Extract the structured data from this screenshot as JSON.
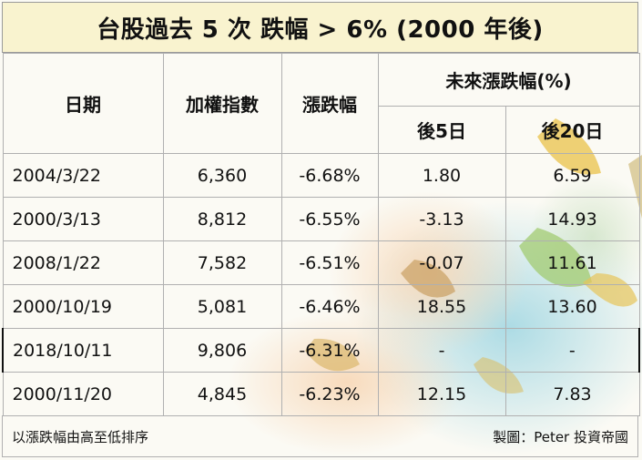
{
  "title": "台股過去 5 次 跌幅 > 6% (2000 年後)",
  "headers": {
    "date": "日期",
    "index": "加權指數",
    "change": "漲跌幅",
    "future": "未來漲跌幅(%)",
    "after5": "後5日",
    "after20": "後20日"
  },
  "rows": [
    {
      "date": "2004/3/22",
      "index": "6,360",
      "change": "-6.68%",
      "after5": "1.80",
      "after20": "6.59"
    },
    {
      "date": "2000/3/13",
      "index": "8,812",
      "change": "-6.55%",
      "after5": "-3.13",
      "after20": "14.93"
    },
    {
      "date": "2008/1/22",
      "index": "7,582",
      "change": "-6.51%",
      "after5": "-0.07",
      "after20": "11.61"
    },
    {
      "date": "2000/10/19",
      "index": "5,081",
      "change": "-6.46%",
      "after5": "18.55",
      "after20": "13.60"
    },
    {
      "date": "2018/10/11",
      "index": "9,806",
      "change": "-6.31%",
      "after5": "-",
      "after20": "-"
    },
    {
      "date": "2000/11/20",
      "index": "4,845",
      "change": "-6.23%",
      "after5": "12.15",
      "after20": "7.83"
    }
  ],
  "footer": {
    "note": "以漲跌幅由高至低排序",
    "credit": "製圖：Peter 投資帝國"
  },
  "colors": {
    "title_bg": "#f9f3cf",
    "positive_highlight": "#e81515",
    "border": "#b0b0b0"
  }
}
